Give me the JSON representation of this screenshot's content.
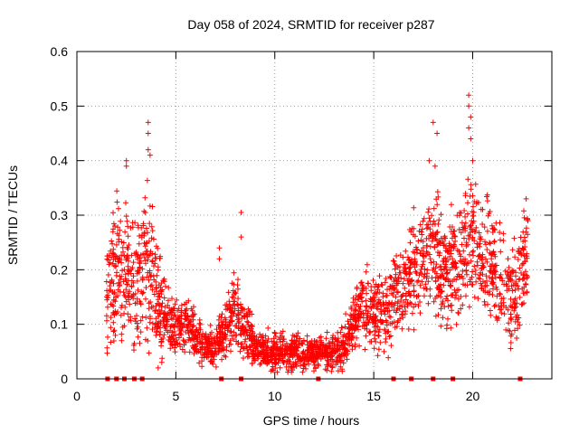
{
  "chart_data": {
    "type": "scatter",
    "title": "Day 058 of 2024, SRMTID for receiver p287",
    "xlabel": "GPS time / hours",
    "ylabel": "SRMTID / TECUs",
    "xlim": [
      0,
      24
    ],
    "ylim": [
      0,
      0.6
    ],
    "xticks": [
      0,
      5,
      10,
      15,
      20
    ],
    "xtick_labels": [
      "0",
      "5",
      "10",
      "15",
      "20"
    ],
    "yticks": [
      0,
      0.1,
      0.2,
      0.3,
      0.4,
      0.5,
      0.6
    ],
    "ytick_labels": [
      "0",
      "0.1",
      "0.2",
      "0.3",
      "0.4",
      "0.5",
      "0.6"
    ],
    "grid": true,
    "marker": "+",
    "color": "#ff0000",
    "series": [
      {
        "name": "SRMTID",
        "envelope": [
          [
            1.5,
            0.16,
            0.07
          ],
          [
            2.0,
            0.19,
            0.08
          ],
          [
            2.5,
            0.2,
            0.08
          ],
          [
            3.0,
            0.15,
            0.07
          ],
          [
            3.5,
            0.21,
            0.09
          ],
          [
            4.0,
            0.15,
            0.07
          ],
          [
            4.5,
            0.11,
            0.04
          ],
          [
            5.0,
            0.09,
            0.03
          ],
          [
            5.5,
            0.1,
            0.03
          ],
          [
            6.0,
            0.08,
            0.025
          ],
          [
            6.5,
            0.06,
            0.02
          ],
          [
            7.0,
            0.06,
            0.02
          ],
          [
            7.5,
            0.09,
            0.03
          ],
          [
            8.0,
            0.13,
            0.04
          ],
          [
            8.5,
            0.09,
            0.03
          ],
          [
            9.0,
            0.06,
            0.02
          ],
          [
            9.5,
            0.05,
            0.02
          ],
          [
            10.0,
            0.05,
            0.02
          ],
          [
            11.0,
            0.05,
            0.02
          ],
          [
            12.0,
            0.045,
            0.02
          ],
          [
            13.0,
            0.05,
            0.02
          ],
          [
            13.5,
            0.06,
            0.025
          ],
          [
            14.0,
            0.11,
            0.03
          ],
          [
            14.5,
            0.14,
            0.04
          ],
          [
            15.0,
            0.12,
            0.04
          ],
          [
            15.5,
            0.12,
            0.04
          ],
          [
            16.0,
            0.15,
            0.05
          ],
          [
            16.5,
            0.17,
            0.05
          ],
          [
            17.0,
            0.2,
            0.06
          ],
          [
            17.5,
            0.21,
            0.06
          ],
          [
            18.0,
            0.26,
            0.07
          ],
          [
            18.5,
            0.2,
            0.06
          ],
          [
            19.0,
            0.2,
            0.06
          ],
          [
            19.5,
            0.23,
            0.07
          ],
          [
            20.0,
            0.25,
            0.07
          ],
          [
            20.5,
            0.22,
            0.06
          ],
          [
            21.0,
            0.21,
            0.06
          ],
          [
            21.5,
            0.19,
            0.06
          ],
          [
            22.0,
            0.14,
            0.05
          ],
          [
            22.5,
            0.2,
            0.06
          ],
          [
            22.8,
            0.22,
            0.05
          ]
        ],
        "peaks": [
          [
            3.6,
            0.47
          ],
          [
            3.6,
            0.45
          ],
          [
            3.6,
            0.42
          ],
          [
            3.7,
            0.41
          ],
          [
            2.5,
            0.4
          ],
          [
            2.5,
            0.39
          ],
          [
            8.3,
            0.305
          ],
          [
            8.3,
            0.26
          ],
          [
            7.2,
            0.24
          ],
          [
            7.2,
            0.22
          ],
          [
            18.0,
            0.47
          ],
          [
            18.2,
            0.45
          ],
          [
            17.8,
            0.4
          ],
          [
            18.1,
            0.39
          ],
          [
            19.8,
            0.52
          ],
          [
            19.8,
            0.5
          ],
          [
            19.9,
            0.48
          ],
          [
            19.8,
            0.46
          ],
          [
            19.9,
            0.44
          ],
          [
            20.0,
            0.4
          ],
          [
            22.7,
            0.33
          ]
        ],
        "zero_markers": [
          1.55,
          2.0,
          2.4,
          2.9,
          3.3,
          7.3,
          8.3,
          12.2,
          16.0,
          16.9,
          18.0,
          19.0,
          22.4
        ]
      }
    ]
  }
}
